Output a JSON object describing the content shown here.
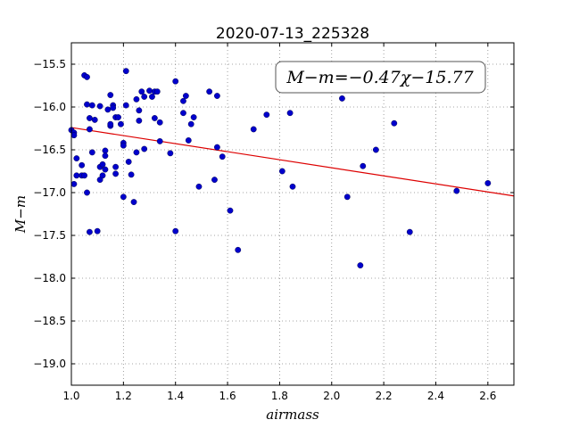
{
  "chart_data": {
    "type": "scatter",
    "title": "2020-07-13_225328",
    "xlabel": "airmass",
    "ylabel": "M−m",
    "xlim": [
      1.0,
      2.7
    ],
    "ylim": [
      -19.25,
      -15.25
    ],
    "y_inverted": true,
    "grid": true,
    "grid_style": "dotted",
    "x_ticks": [
      1.0,
      1.2,
      1.4,
      1.6,
      1.8,
      2.0,
      2.2,
      2.4,
      2.6
    ],
    "x_tick_labels": [
      "1.0",
      "1.2",
      "1.4",
      "1.6",
      "1.8",
      "2.0",
      "2.2",
      "2.4",
      "2.6"
    ],
    "y_ticks": [
      -15.5,
      -16.0,
      -16.5,
      -17.0,
      -17.5,
      -18.0,
      -18.5,
      -19.0
    ],
    "y_tick_labels": [
      "−15.5",
      "−16.0",
      "−16.5",
      "−17.0",
      "−17.5",
      "−18.0",
      "−18.5",
      "−19.0"
    ],
    "annotation": "M−m=−0.47χ−15.77",
    "annotation_position": "top-right",
    "fit_line": {
      "slope": -0.47,
      "intercept": -15.77,
      "color": "#dd0000"
    },
    "marker_color": "#0000cc",
    "points": [
      [
        1.0,
        -16.27
      ],
      [
        1.01,
        -16.3
      ],
      [
        1.01,
        -16.33
      ],
      [
        1.02,
        -16.6
      ],
      [
        1.01,
        -16.9
      ],
      [
        1.02,
        -16.8
      ],
      [
        1.04,
        -16.68
      ],
      [
        1.04,
        -16.8
      ],
      [
        1.05,
        -15.63
      ],
      [
        1.05,
        -16.8
      ],
      [
        1.06,
        -17.0
      ],
      [
        1.06,
        -15.65
      ],
      [
        1.06,
        -15.97
      ],
      [
        1.07,
        -16.13
      ],
      [
        1.07,
        -16.26
      ],
      [
        1.07,
        -17.46
      ],
      [
        1.08,
        -15.98
      ],
      [
        1.08,
        -16.53
      ],
      [
        1.09,
        -16.15
      ],
      [
        1.1,
        -17.45
      ],
      [
        1.11,
        -15.99
      ],
      [
        1.11,
        -16.7
      ],
      [
        1.11,
        -16.85
      ],
      [
        1.12,
        -16.67
      ],
      [
        1.12,
        -16.8
      ],
      [
        1.13,
        -16.51
      ],
      [
        1.13,
        -16.57
      ],
      [
        1.13,
        -16.73
      ],
      [
        1.14,
        -16.03
      ],
      [
        1.15,
        -15.86
      ],
      [
        1.15,
        -16.22
      ],
      [
        1.15,
        -16.2
      ],
      [
        1.16,
        -15.98
      ],
      [
        1.16,
        -16.01
      ],
      [
        1.17,
        -16.12
      ],
      [
        1.17,
        -16.7
      ],
      [
        1.17,
        -16.78
      ],
      [
        1.18,
        -16.12
      ],
      [
        1.19,
        -16.2
      ],
      [
        1.2,
        -16.42
      ],
      [
        1.2,
        -16.45
      ],
      [
        1.2,
        -17.05
      ],
      [
        1.21,
        -15.98
      ],
      [
        1.21,
        -15.58
      ],
      [
        1.22,
        -16.64
      ],
      [
        1.23,
        -16.79
      ],
      [
        1.24,
        -17.11
      ],
      [
        1.25,
        -15.91
      ],
      [
        1.25,
        -16.53
      ],
      [
        1.26,
        -16.04
      ],
      [
        1.26,
        -16.16
      ],
      [
        1.27,
        -15.82
      ],
      [
        1.28,
        -15.88
      ],
      [
        1.28,
        -16.49
      ],
      [
        1.3,
        -15.81
      ],
      [
        1.31,
        -15.88
      ],
      [
        1.32,
        -15.82
      ],
      [
        1.32,
        -16.13
      ],
      [
        1.33,
        -15.82
      ],
      [
        1.34,
        -16.18
      ],
      [
        1.34,
        -16.4
      ],
      [
        1.38,
        -16.54
      ],
      [
        1.4,
        -15.7
      ],
      [
        1.4,
        -17.45
      ],
      [
        1.43,
        -16.07
      ],
      [
        1.43,
        -15.93
      ],
      [
        1.44,
        -15.87
      ],
      [
        1.45,
        -16.39
      ],
      [
        1.46,
        -16.2
      ],
      [
        1.47,
        -16.12
      ],
      [
        1.49,
        -16.93
      ],
      [
        1.53,
        -15.82
      ],
      [
        1.55,
        -16.85
      ],
      [
        1.56,
        -15.87
      ],
      [
        1.56,
        -16.47
      ],
      [
        1.58,
        -16.58
      ],
      [
        1.61,
        -17.21
      ],
      [
        1.64,
        -17.67
      ],
      [
        1.7,
        -16.26
      ],
      [
        1.75,
        -16.09
      ],
      [
        1.81,
        -16.75
      ],
      [
        1.84,
        -16.07
      ],
      [
        1.85,
        -16.93
      ],
      [
        2.04,
        -15.9
      ],
      [
        2.06,
        -17.05
      ],
      [
        2.11,
        -17.85
      ],
      [
        2.12,
        -16.69
      ],
      [
        2.17,
        -16.5
      ],
      [
        2.24,
        -16.19
      ],
      [
        2.3,
        -17.46
      ],
      [
        2.48,
        -16.98
      ],
      [
        2.6,
        -16.89
      ]
    ]
  }
}
